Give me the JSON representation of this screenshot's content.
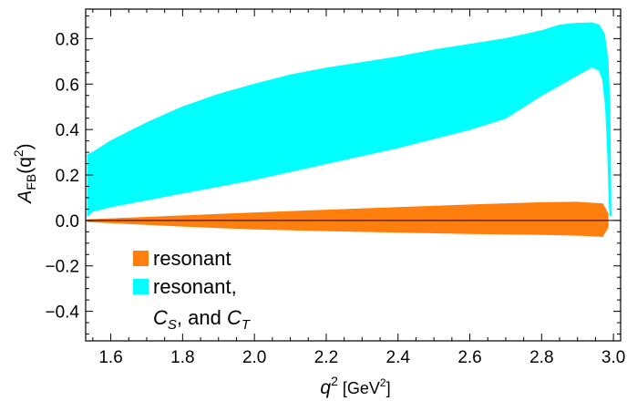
{
  "chart_data": {
    "type": "area",
    "title": "",
    "xlabel": {
      "main": "q",
      "sup": "2",
      "unit": " [GeV",
      "unit_sup": "2",
      "unit_close": "]"
    },
    "ylabel": {
      "main": "A",
      "sub": "FB",
      "open": "(q",
      "sup": "2",
      "close": ")"
    },
    "xlim": [
      1.53,
      3.02
    ],
    "ylim": [
      -0.53,
      0.93
    ],
    "x_ticks": [
      1.6,
      1.8,
      2.0,
      2.2,
      2.4,
      2.6,
      2.8,
      3.0
    ],
    "x_tick_labels": [
      "1.6",
      "1.8",
      "2.0",
      "2.2",
      "2.4",
      "2.6",
      "2.8",
      "3.0"
    ],
    "y_ticks": [
      -0.4,
      -0.2,
      0.0,
      0.2,
      0.4,
      0.6,
      0.8
    ],
    "y_tick_labels": [
      "−0.4",
      "−0.2",
      "0.0",
      "0.2",
      "0.4",
      "0.6",
      "0.8"
    ],
    "zero_line": true,
    "grid": false,
    "legend_position": "bottom-left",
    "series": [
      {
        "name": "resonant",
        "color": "#ff7f0e",
        "upper": [
          [
            1.535,
            0.003
          ],
          [
            1.6,
            0.007
          ],
          [
            1.8,
            0.02
          ],
          [
            2.0,
            0.033
          ],
          [
            2.2,
            0.045
          ],
          [
            2.4,
            0.057
          ],
          [
            2.6,
            0.068
          ],
          [
            2.8,
            0.078
          ],
          [
            2.9,
            0.08
          ],
          [
            2.97,
            0.073
          ],
          [
            2.985,
            0.03
          ]
        ],
        "lower": [
          [
            1.535,
            -0.005
          ],
          [
            1.6,
            -0.01
          ],
          [
            1.8,
            -0.025
          ],
          [
            2.0,
            -0.038
          ],
          [
            2.2,
            -0.045
          ],
          [
            2.4,
            -0.052
          ],
          [
            2.6,
            -0.058
          ],
          [
            2.8,
            -0.062
          ],
          [
            2.9,
            -0.065
          ],
          [
            2.97,
            -0.07
          ],
          [
            2.985,
            -0.03
          ]
        ]
      },
      {
        "name": "resonant, C_S, and C_T",
        "color": "#00ffff",
        "upper": [
          [
            1.535,
            0.29
          ],
          [
            1.55,
            0.3
          ],
          [
            1.6,
            0.35
          ],
          [
            1.7,
            0.43
          ],
          [
            1.8,
            0.5
          ],
          [
            1.9,
            0.555
          ],
          [
            2.0,
            0.6
          ],
          [
            2.1,
            0.64
          ],
          [
            2.2,
            0.67
          ],
          [
            2.3,
            0.695
          ],
          [
            2.4,
            0.72
          ],
          [
            2.5,
            0.75
          ],
          [
            2.6,
            0.775
          ],
          [
            2.7,
            0.8
          ],
          [
            2.8,
            0.835
          ],
          [
            2.85,
            0.86
          ],
          [
            2.9,
            0.868
          ],
          [
            2.94,
            0.87
          ],
          [
            2.96,
            0.86
          ],
          [
            2.975,
            0.82
          ],
          [
            2.985,
            0.7
          ],
          [
            2.99,
            0.5
          ],
          [
            2.993,
            0.02
          ]
        ],
        "lower": [
          [
            1.535,
            0.02
          ],
          [
            1.55,
            0.04
          ],
          [
            1.6,
            0.06
          ],
          [
            1.8,
            0.12
          ],
          [
            2.0,
            0.18
          ],
          [
            2.2,
            0.25
          ],
          [
            2.4,
            0.32
          ],
          [
            2.6,
            0.4
          ],
          [
            2.7,
            0.45
          ],
          [
            2.8,
            0.55
          ],
          [
            2.9,
            0.64
          ],
          [
            2.94,
            0.675
          ],
          [
            2.96,
            0.66
          ],
          [
            2.97,
            0.62
          ],
          [
            2.978,
            0.5
          ],
          [
            2.984,
            0.3
          ],
          [
            2.988,
            0.1
          ],
          [
            2.99,
            0.02
          ]
        ]
      }
    ],
    "legend": [
      {
        "color": "#ff7f0e",
        "line1": "resonant"
      },
      {
        "color": "#00ffff",
        "line1": "resonant,",
        "cs_base": "C",
        "cs_sub": "S",
        "mid": ", and ",
        "ct_base": "C",
        "ct_sub": "T"
      }
    ]
  }
}
